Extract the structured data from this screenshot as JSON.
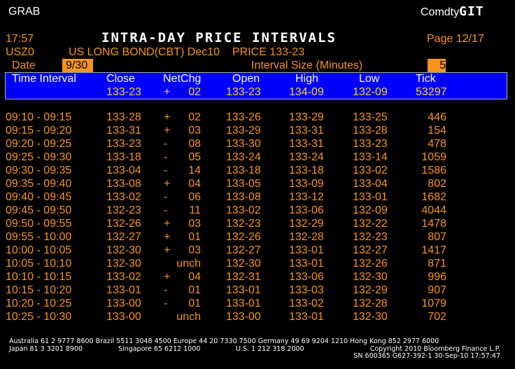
{
  "top": {
    "left_label": "GRAB",
    "right_prefix": "Comdty",
    "right_code": "GIT"
  },
  "header": {
    "time": "17:57",
    "title": "INTRA-DAY PRICE INTERVALS",
    "page": "Page 12/17"
  },
  "security": {
    "ticker": "USZ0",
    "name": "US LONG BOND(CBT) Dec10",
    "price": "PRICE 133-23"
  },
  "params": {
    "date_label": "Date",
    "date_value": "9/30",
    "interval_label": "Interval Size (Minutes)",
    "interval_value": "5"
  },
  "columns": {
    "time": "Time Interval",
    "close": "Close",
    "netchg": "NetChg",
    "open": "Open",
    "high": "High",
    "low": "Low",
    "tick": "Tick"
  },
  "summary": {
    "close": "133-23",
    "sign": "+",
    "chg": "02",
    "open": "133-23",
    "high": "134-09",
    "low": "132-09",
    "tick": "53297"
  },
  "rows": [
    {
      "time": "09:10 - 09:15",
      "close": "133-28",
      "sign": "+",
      "chg": "02",
      "open": "133-26",
      "high": "133-29",
      "low": "133-25",
      "tick": "446"
    },
    {
      "time": "09:15 - 09:20",
      "close": "133-31",
      "sign": "+",
      "chg": "03",
      "open": "133-29",
      "high": "133-31",
      "low": "133-28",
      "tick": "154"
    },
    {
      "time": "09:20 - 09:25",
      "close": "133-23",
      "sign": "-",
      "chg": "08",
      "open": "133-30",
      "high": "133-31",
      "low": "133-23",
      "tick": "478"
    },
    {
      "time": "09:25 - 09:30",
      "close": "133-18",
      "sign": "-",
      "chg": "05",
      "open": "133-24",
      "high": "133-24",
      "low": "133-14",
      "tick": "1059"
    },
    {
      "time": "09:30 - 09:35",
      "close": "133-04",
      "sign": "-",
      "chg": "14",
      "open": "133-18",
      "high": "133-18",
      "low": "133-02",
      "tick": "1586"
    },
    {
      "time": "09:35 - 09:40",
      "close": "133-08",
      "sign": "+",
      "chg": "04",
      "open": "133-05",
      "high": "133-09",
      "low": "133-04",
      "tick": "802"
    },
    {
      "time": "09:40 - 09:45",
      "close": "133-02",
      "sign": "-",
      "chg": "06",
      "open": "133-08",
      "high": "133-12",
      "low": "133-01",
      "tick": "1682"
    },
    {
      "time": "09:45 - 09:50",
      "close": "132-23",
      "sign": "-",
      "chg": "11",
      "open": "133-02",
      "high": "133-06",
      "low": "132-09",
      "tick": "4044"
    },
    {
      "time": "09:50 - 09:55",
      "close": "132-26",
      "sign": "+",
      "chg": "03",
      "open": "132-23",
      "high": "132-29",
      "low": "132-22",
      "tick": "1478"
    },
    {
      "time": "09:55 - 10:00",
      "close": "132-27",
      "sign": "+",
      "chg": "01",
      "open": "132-26",
      "high": "132-28",
      "low": "132-23",
      "tick": "807"
    },
    {
      "time": "10:00 - 10:05",
      "close": "132-30",
      "sign": "+",
      "chg": "03",
      "open": "132-27",
      "high": "133-01",
      "low": "132-27",
      "tick": "1417"
    },
    {
      "time": "10:05 - 10:10",
      "close": "132-30",
      "sign": "",
      "chg": "unch",
      "open": "132-30",
      "high": "133-01",
      "low": "132-26",
      "tick": "871"
    },
    {
      "time": "10:10 - 10:15",
      "close": "133-02",
      "sign": "+",
      "chg": "04",
      "open": "132-31",
      "high": "133-06",
      "low": "132-30",
      "tick": "996"
    },
    {
      "time": "10:15 - 10:20",
      "close": "133-01",
      "sign": "-",
      "chg": "01",
      "open": "133-01",
      "high": "133-03",
      "low": "132-29",
      "tick": "907"
    },
    {
      "time": "10:20 - 10:25",
      "close": "133-00",
      "sign": "-",
      "chg": "01",
      "open": "133-01",
      "high": "133-02",
      "low": "132-28",
      "tick": "1079"
    },
    {
      "time": "10:25 - 10:30",
      "close": "133-00",
      "sign": "",
      "chg": "unch",
      "open": "133-00",
      "high": "133-01",
      "low": "132-30",
      "tick": "702"
    }
  ],
  "footer": {
    "line1": "Australia 61 2 9777 8600 Brazil 5511 3048 4500 Europe 44 20 7330 7500 Germany 49 69 9204 1210 Hong Kong 852 2977 6000",
    "japan": "Japan 81 3 3201 8900",
    "singapore": "Singapore 65 6212 1000",
    "us": "U.S. 1 212 318 2000",
    "copyright": "Copyright 2010 Bloomberg Finance L.P.",
    "serial": "SN 600365 G627-392-1 30-Sep-10 17:57:47"
  },
  "colors": {
    "background": "#000000",
    "text": "#f7941d",
    "header_bar": "#0000ff",
    "summary_text": "#ffd21a"
  }
}
